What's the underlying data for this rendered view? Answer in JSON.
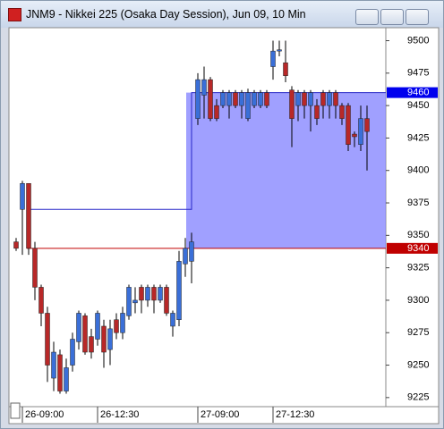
{
  "chart_data": {
    "type": "candlestick",
    "title": "JNM9 - Nikkei 225 (Osaka Day Session), Jun 09, 10 Min",
    "categories": [
      null,
      "26-09:00",
      null,
      null,
      null,
      null,
      null,
      null,
      null,
      null,
      null,
      null,
      null,
      "26-12:30",
      null,
      null,
      null,
      null,
      null,
      null,
      null,
      null,
      null,
      null,
      null,
      null,
      null,
      null,
      null,
      "27-09:00",
      null,
      null,
      null,
      null,
      null,
      null,
      null,
      null,
      null,
      null,
      null,
      "27-12:30",
      null,
      null,
      null,
      null,
      null,
      null,
      null,
      null,
      null,
      null,
      null,
      null,
      null,
      null,
      null
    ],
    "open": [
      9345,
      9370,
      9390,
      9340,
      9310,
      9290,
      9240,
      9258,
      9230,
      9250,
      9268,
      9288,
      9272,
      9270,
      9280,
      9262,
      9285,
      9275,
      9288,
      9298,
      9310,
      9300,
      9310,
      9300,
      9310,
      9280,
      9285,
      9328,
      9330,
      9440,
      9458,
      9470,
      9450,
      9450,
      9450,
      9460,
      9450,
      9440,
      9450,
      9450,
      9460,
      9480,
      9492,
      9483,
      9462,
      9450,
      9460,
      9450,
      9450,
      9460,
      9450,
      9460,
      9450,
      9450,
      9428,
      9420,
      9440
    ],
    "high": [
      9348,
      9392,
      9390,
      9345,
      9312,
      9295,
      9268,
      9262,
      9255,
      9275,
      9292,
      9290,
      9278,
      9292,
      9285,
      9285,
      9290,
      9295,
      9312,
      9310,
      9312,
      9312,
      9312,
      9312,
      9312,
      9292,
      9338,
      9348,
      9352,
      9475,
      9480,
      9472,
      9455,
      9462,
      9462,
      9462,
      9462,
      9463,
      9462,
      9462,
      9462,
      9500,
      9500,
      9500,
      9465,
      9462,
      9462,
      9462,
      9455,
      9462,
      9462,
      9462,
      9452,
      9452,
      9430,
      9450,
      9450
    ],
    "low": [
      9338,
      9335,
      9335,
      9300,
      9280,
      9237,
      9230,
      9228,
      9228,
      9245,
      9262,
      9258,
      9255,
      9265,
      9248,
      9250,
      9270,
      9270,
      9285,
      9290,
      9290,
      9295,
      9290,
      9298,
      9288,
      9272,
      9280,
      9318,
      9313,
      9435,
      9440,
      9438,
      9438,
      9448,
      9440,
      9448,
      9440,
      9438,
      9448,
      9448,
      9448,
      9470,
      9488,
      9468,
      9418,
      9438,
      9440,
      9430,
      9435,
      9440,
      9440,
      9440,
      9435,
      9415,
      9418,
      9415,
      9400
    ],
    "close": [
      9340,
      9390,
      9340,
      9310,
      9290,
      9250,
      9260,
      9230,
      9248,
      9270,
      9290,
      9260,
      9260,
      9290,
      9260,
      9278,
      9275,
      9290,
      9310,
      9300,
      9300,
      9310,
      9300,
      9310,
      9290,
      9290,
      9330,
      9340,
      9345,
      9470,
      9470,
      9440,
      9440,
      9460,
      9460,
      9450,
      9460,
      9460,
      9460,
      9460,
      9450,
      9492,
      9493,
      9473,
      9440,
      9460,
      9450,
      9460,
      9440,
      9450,
      9460,
      9450,
      9440,
      9420,
      9426,
      9440,
      9430
    ],
    "up_color": "#3a6fd8",
    "down_color": "#b82828",
    "ylim": [
      9218,
      9510
    ],
    "yticks": [
      9225,
      9250,
      9275,
      9300,
      9325,
      9350,
      9375,
      9400,
      9425,
      9450,
      9475,
      9500
    ],
    "band": {
      "from": 9340,
      "to": 9460,
      "color": "#8080ff"
    },
    "lines": [
      {
        "color": "#2828c8",
        "values": [
          9370,
          9460
        ]
      },
      {
        "color": "#c00000",
        "values": [
          9340,
          9340
        ]
      }
    ],
    "levels": [
      {
        "value": 9460,
        "color": "#0000ee"
      },
      {
        "value": 9340,
        "color": "#c00000"
      }
    ]
  }
}
